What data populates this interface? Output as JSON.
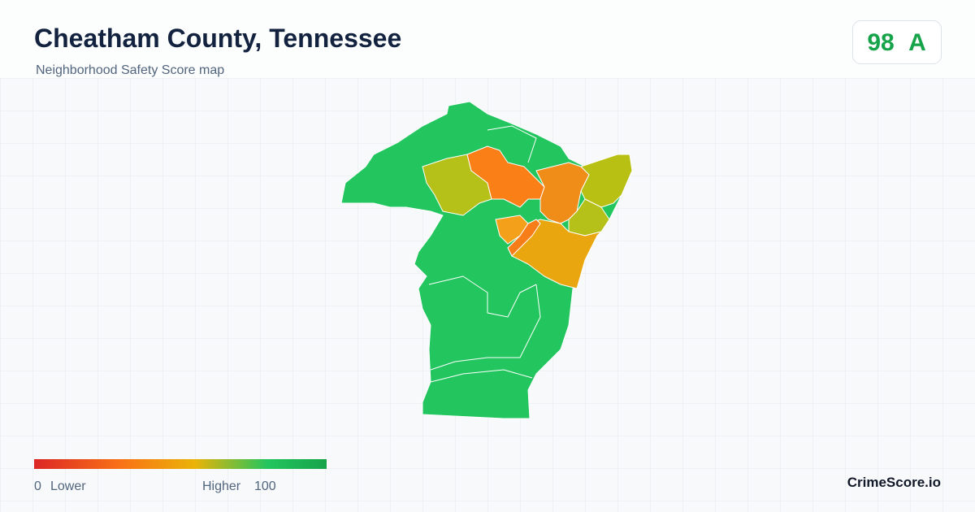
{
  "header": {
    "title": "Cheatham County, Tennessee",
    "subtitle": "Neighborhood Safety Score map"
  },
  "score": {
    "value": "98",
    "grade": "A"
  },
  "legend": {
    "min": "0",
    "low_label": "Lower",
    "high_label": "Higher",
    "max": "100"
  },
  "footer": {
    "brand": "CrimeScore.io"
  }
}
